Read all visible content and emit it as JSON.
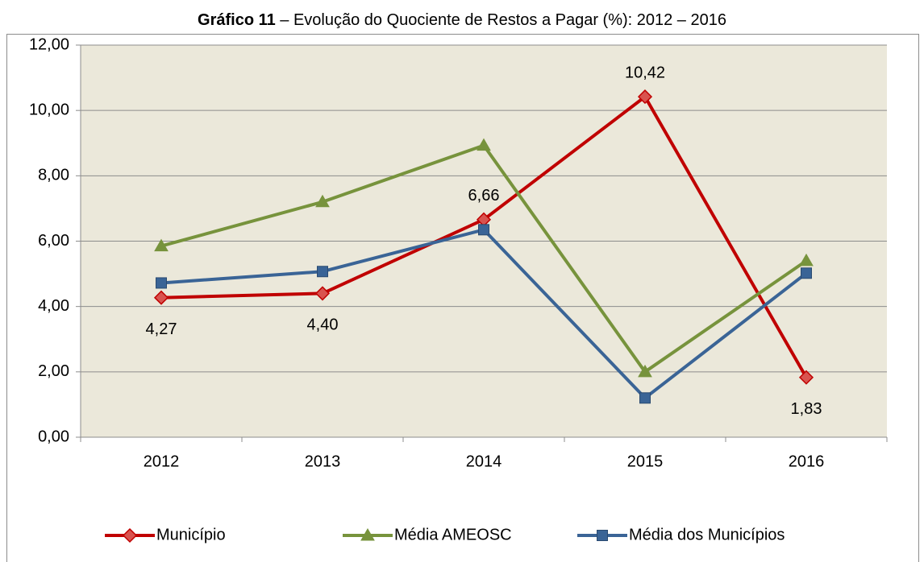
{
  "chart_data": {
    "type": "line",
    "title": [
      "Gráfico 11",
      " – Evolução do Quociente de Restos a Pagar (%): 2012 – 2016"
    ],
    "categories": [
      "2012",
      "2013",
      "2014",
      "2015",
      "2016"
    ],
    "series": [
      {
        "name": "Município",
        "color": "#c00000",
        "marker": "diamond",
        "values": [
          4.27,
          4.4,
          6.66,
          10.42,
          1.83
        ],
        "value_labels": [
          "4,27",
          "4,40",
          "6,66",
          "10,42",
          "1,83"
        ]
      },
      {
        "name": "Média AMEOSC",
        "color": "#77933c",
        "marker": "triangle",
        "values": [
          5.85,
          7.2,
          8.93,
          2.0,
          5.4
        ]
      },
      {
        "name": "Média dos Municípios",
        "color": "#3a6496",
        "marker": "square",
        "values": [
          4.72,
          5.07,
          6.35,
          1.2,
          5.02
        ]
      }
    ],
    "ylim": [
      0,
      12
    ],
    "yticks": [
      {
        "value": 0,
        "label": "0,00"
      },
      {
        "value": 2,
        "label": "2,00"
      },
      {
        "value": 4,
        "label": "4,00"
      },
      {
        "value": 6,
        "label": "6,00"
      },
      {
        "value": 8,
        "label": "8,00"
      },
      {
        "value": 10,
        "label": "10,00"
      },
      {
        "value": 12,
        "label": "12,00"
      }
    ],
    "grid": true,
    "legend": "bottom"
  }
}
